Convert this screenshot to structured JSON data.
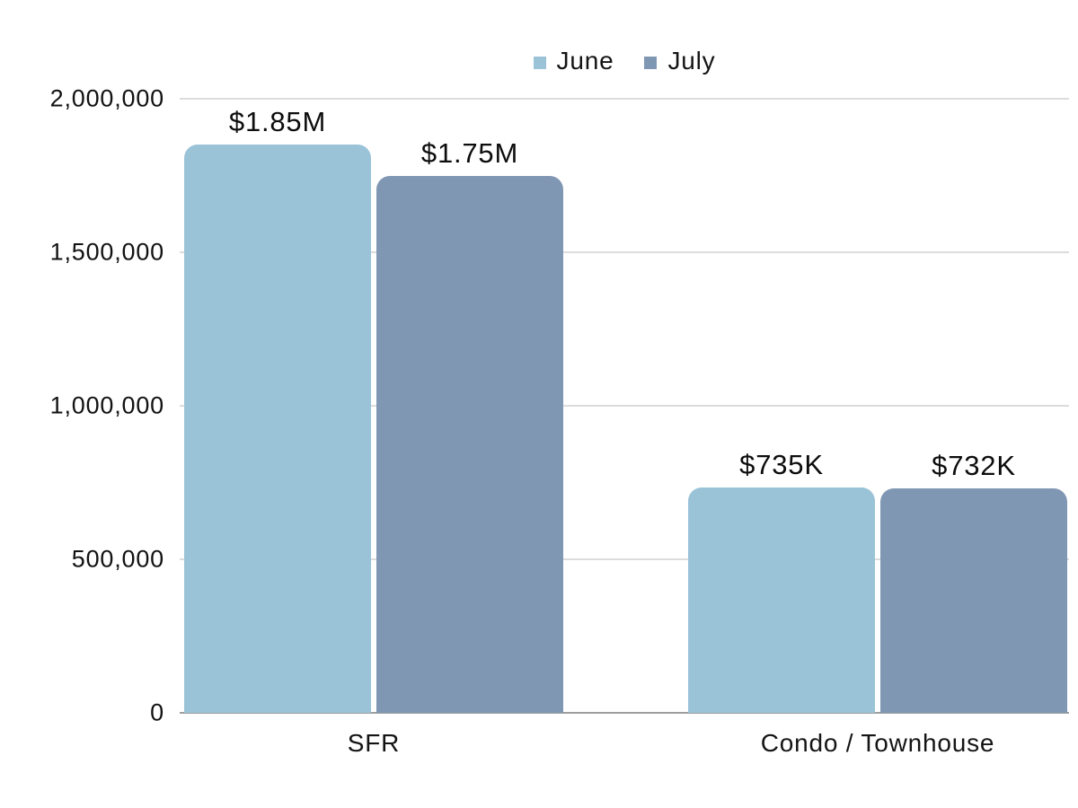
{
  "colors": {
    "june": "#9AC3D8",
    "july": "#8097B4",
    "gridline": "#DCDCDC",
    "baseline": "#9E9E9E",
    "text": "#121212",
    "background": "#FFFFFF"
  },
  "legend": {
    "position": "top-center",
    "items": [
      {
        "label": "June",
        "color": "#9AC3D8"
      },
      {
        "label": "July",
        "color": "#8097B4"
      }
    ]
  },
  "chart_data": {
    "type": "bar",
    "title": "",
    "xlabel": "",
    "ylabel": "",
    "categories": [
      "SFR",
      "Condo / Townhouse"
    ],
    "series": [
      {
        "name": "June",
        "color": "#9AC3D8",
        "values": [
          1850000,
          735000
        ],
        "data_labels": [
          "$1.85M",
          "$735K"
        ]
      },
      {
        "name": "July",
        "color": "#8097B4",
        "values": [
          1750000,
          732000
        ],
        "data_labels": [
          "$1.75M",
          "$732K"
        ]
      }
    ],
    "ylim": [
      0,
      2000000
    ],
    "yticks": [
      0,
      500000,
      1000000,
      1500000,
      2000000
    ],
    "ytick_labels": [
      "0",
      "500,000",
      "1,000,000",
      "1,500,000",
      "2,000,000"
    ],
    "grid": true,
    "legend_position": "top-center"
  }
}
